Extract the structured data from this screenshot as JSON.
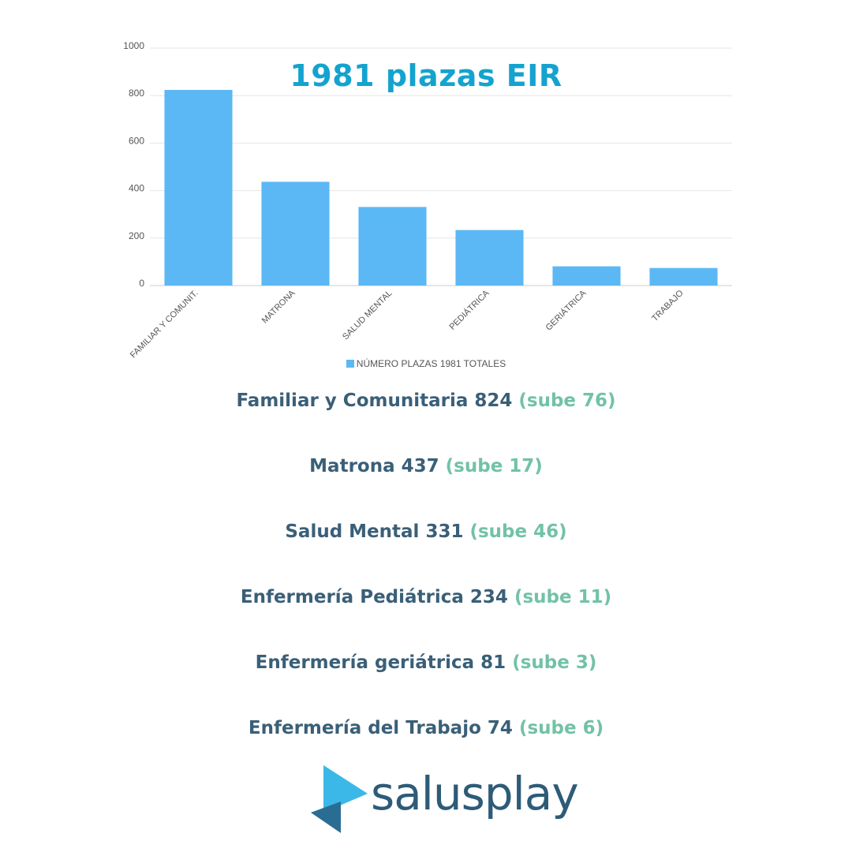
{
  "chart_data": {
    "type": "bar",
    "title": "1981 plazas EIR",
    "categories": [
      "FAMILIAR Y COMUNIT.",
      "MATRONA",
      "SALUD MENTAL",
      "PEDIÁTRICA",
      "GERIÁTRICA",
      "TRABAJO"
    ],
    "series": [
      {
        "name": "NÚMERO PLAZAS 1981 TOTALES",
        "values": [
          824,
          437,
          331,
          234,
          81,
          74
        ],
        "color": "#5bb8f5"
      }
    ],
    "yticks": [
      "0",
      "200",
      "400",
      "600",
      "800",
      "1000"
    ],
    "ylim": [
      0,
      1000
    ],
    "grid": true,
    "legend_position": "bottom"
  },
  "stats": [
    {
      "label": "Familiar y Comunitaria 824",
      "change": "(sube 76)"
    },
    {
      "label": "Matrona 437",
      "change": "(sube 17)"
    },
    {
      "label": "Salud Mental 331",
      "change": "(sube 46)"
    },
    {
      "label": "Enfermería Pediátrica 234",
      "change": "(sube 11)"
    },
    {
      "label": "Enfermería geriátrica 81",
      "change": "(sube 3)"
    },
    {
      "label": "Enfermería del Trabajo 74",
      "change": "(sube 6)"
    }
  ],
  "brand": {
    "name": "salusplay",
    "color_primary": "#2d5b78",
    "color_accent": "#3bb8e8"
  }
}
